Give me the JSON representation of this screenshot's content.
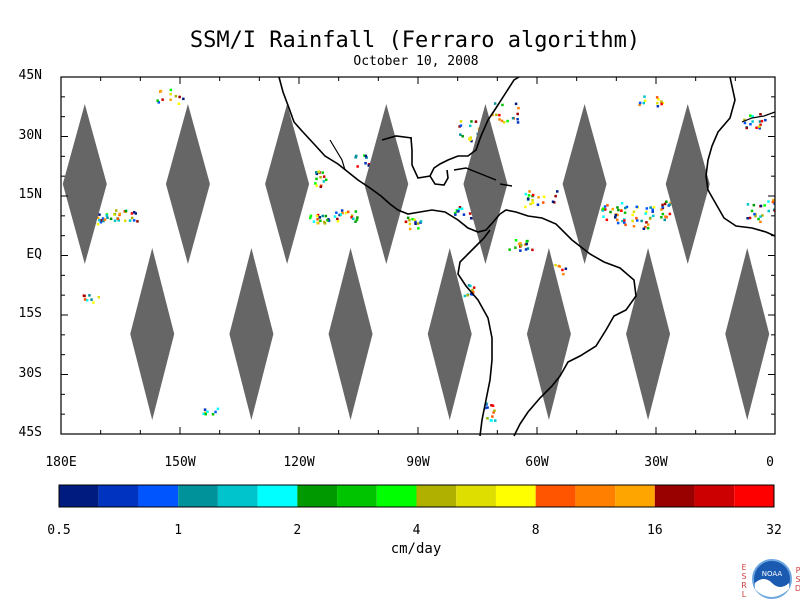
{
  "title": "SSM/I Rainfall (Ferraro algorithm)",
  "date": "October 10, 2008",
  "lat_labels": [
    "45N",
    "30N",
    "15N",
    "EQ",
    "15S",
    "30S",
    "45S"
  ],
  "lon_labels": [
    "180E",
    "150W",
    "120W",
    "90W",
    "60W",
    "30W",
    "0"
  ],
  "colorbar": {
    "units": "cm/day",
    "tick_labels": [
      "0.5",
      "1",
      "2",
      "4",
      "8",
      "16",
      "32"
    ],
    "colors": [
      "#001b80",
      "#0033c0",
      "#0055ff",
      "#00929b",
      "#00c4cc",
      "#00ffff",
      "#009900",
      "#00c400",
      "#00ff00",
      "#b0b000",
      "#dede00",
      "#ffff00",
      "#ff5500",
      "#ff8000",
      "#ffa500",
      "#990000",
      "#cc0000",
      "#ff0000"
    ]
  },
  "map": {
    "land_outline_color": "#000000",
    "no_data_color": "#666666",
    "swath_gaps_north": [
      {
        "center_lon": -174
      },
      {
        "center_lon": -148
      },
      {
        "center_lon": -123
      },
      {
        "center_lon": -98
      },
      {
        "center_lon": -73
      },
      {
        "center_lon": -48
      },
      {
        "center_lon": -22
      }
    ],
    "swath_gaps_south": [
      {
        "center_lon": -157
      },
      {
        "center_lon": -132
      },
      {
        "center_lon": -107
      },
      {
        "center_lon": -82
      },
      {
        "center_lon": -57
      },
      {
        "center_lon": -32
      },
      {
        "center_lon": -7
      }
    ]
  },
  "logo": {
    "left_letters": "ESRL",
    "right_letters": "PSD",
    "center_text": "NOAA"
  }
}
